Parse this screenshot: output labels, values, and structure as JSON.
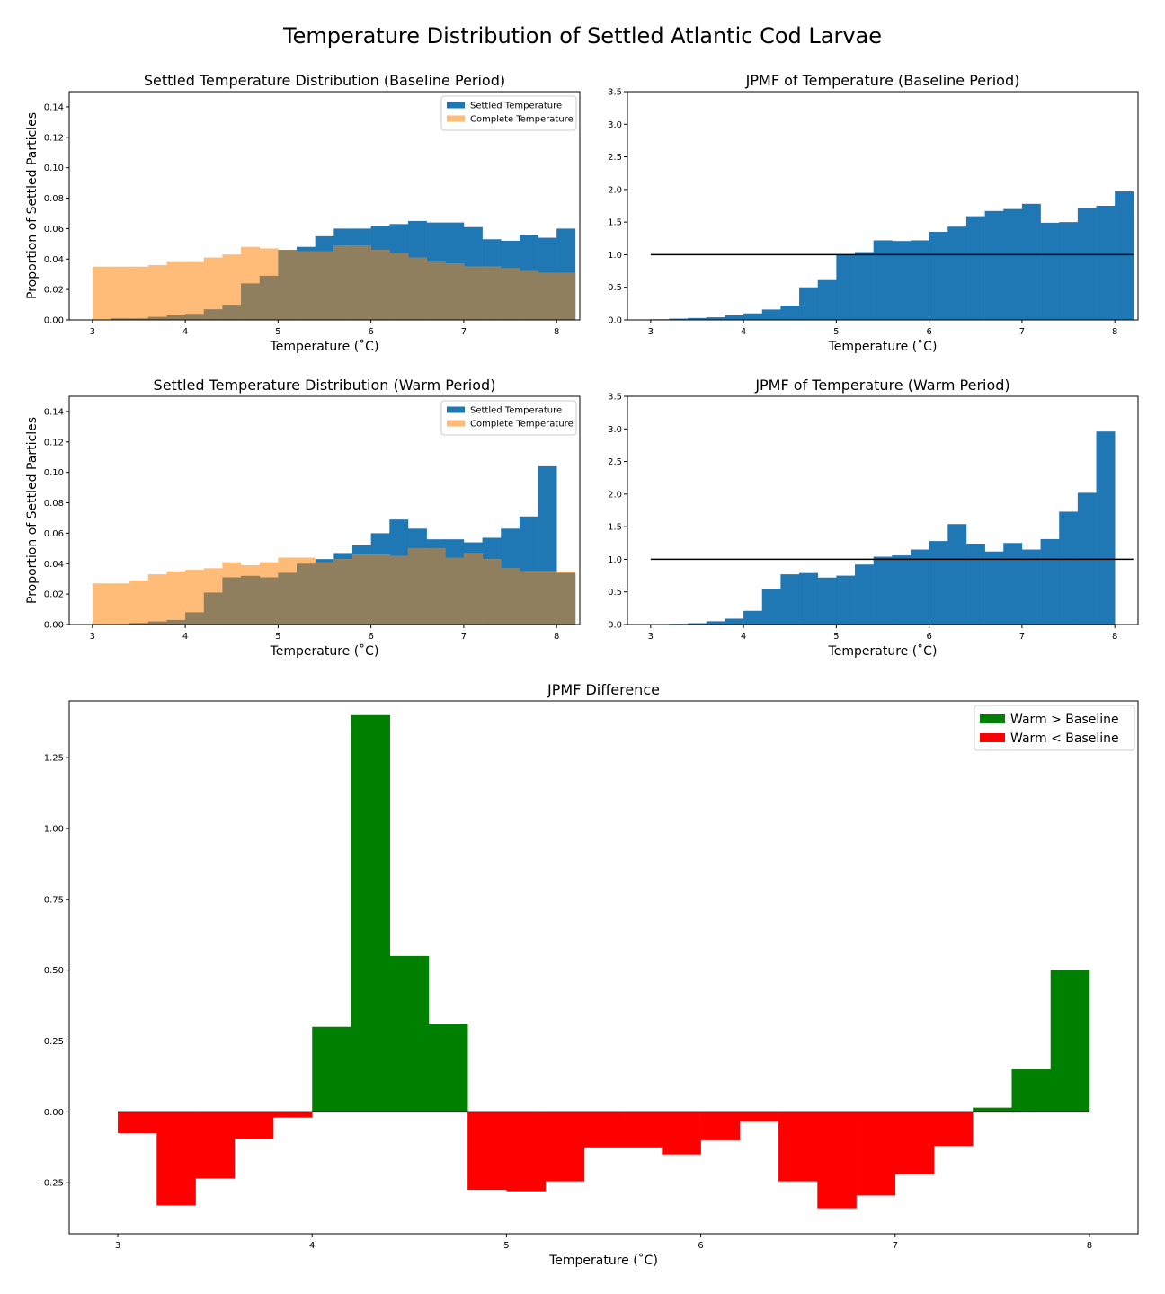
{
  "figure": {
    "title": "Temperature Distribution of Settled Atlantic Cod Larvae"
  },
  "colors": {
    "settled": "#1f77b4",
    "complete": "#ffbb78",
    "overlap": "#8f7f5e",
    "positive": "#008000",
    "negative": "#ff0000",
    "axis": "#000000"
  },
  "chart_data": [
    {
      "id": "hist-baseline",
      "type": "bar",
      "title": "Settled Temperature Distribution (Baseline Period)",
      "xlabel": "Temperature (˚C)",
      "ylabel": "Proportion of Settled Particles",
      "xlim": [
        2.75,
        8.25
      ],
      "ylim": [
        0,
        0.15
      ],
      "xticks": [
        "3",
        "4",
        "5",
        "6",
        "7",
        "8"
      ],
      "yticks": [
        "0.00",
        "0.02",
        "0.04",
        "0.06",
        "0.08",
        "0.10",
        "0.12",
        "0.14"
      ],
      "bin_start": 3.0,
      "bin_width": 0.2,
      "legend": {
        "position": "upper right",
        "entries": [
          "Settled Temperature",
          "Complete Temperature"
        ]
      },
      "series": [
        {
          "name": "Settled Temperature",
          "values": [
            0.0,
            0.001,
            0.001,
            0.002,
            0.003,
            0.004,
            0.007,
            0.01,
            0.024,
            0.029,
            0.046,
            0.048,
            0.055,
            0.06,
            0.06,
            0.062,
            0.063,
            0.065,
            0.064,
            0.064,
            0.061,
            0.053,
            0.052,
            0.056,
            0.054,
            0.06
          ]
        },
        {
          "name": "Complete Temperature",
          "values": [
            0.035,
            0.035,
            0.035,
            0.036,
            0.038,
            0.038,
            0.041,
            0.043,
            0.048,
            0.047,
            0.046,
            0.045,
            0.045,
            0.049,
            0.049,
            0.046,
            0.044,
            0.041,
            0.038,
            0.037,
            0.035,
            0.035,
            0.034,
            0.032,
            0.031,
            0.031
          ]
        }
      ]
    },
    {
      "id": "jpmf-baseline",
      "type": "bar",
      "title": "JPMF of Temperature (Baseline Period)",
      "xlabel": "Temperature (˚C)",
      "xlim": [
        2.75,
        8.25
      ],
      "ylim": [
        0,
        3.5
      ],
      "xticks": [
        "3",
        "4",
        "5",
        "6",
        "7",
        "8"
      ],
      "yticks": [
        "0.0",
        "0.5",
        "1.0",
        "1.5",
        "2.0",
        "2.5",
        "3.0",
        "3.5"
      ],
      "bin_start": 3.0,
      "bin_width": 0.2,
      "reference_line": 1.0,
      "values": [
        0.01,
        0.02,
        0.03,
        0.04,
        0.07,
        0.1,
        0.16,
        0.22,
        0.5,
        0.61,
        1.0,
        1.04,
        1.22,
        1.21,
        1.22,
        1.35,
        1.43,
        1.59,
        1.67,
        1.7,
        1.78,
        1.49,
        1.5,
        1.71,
        1.75,
        1.97
      ]
    },
    {
      "id": "hist-warm",
      "type": "bar",
      "title": "Settled Temperature Distribution (Warm Period)",
      "xlabel": "Temperature (˚C)",
      "ylabel": "Proportion of Settled Particles",
      "xlim": [
        2.75,
        8.25
      ],
      "ylim": [
        0,
        0.15
      ],
      "xticks": [
        "3",
        "4",
        "5",
        "6",
        "7",
        "8"
      ],
      "yticks": [
        "0.00",
        "0.02",
        "0.04",
        "0.06",
        "0.08",
        "0.10",
        "0.12",
        "0.14"
      ],
      "bin_start": 3.0,
      "bin_width": 0.2,
      "legend": {
        "position": "upper right",
        "entries": [
          "Settled Temperature",
          "Complete Temperature"
        ]
      },
      "series": [
        {
          "name": "Settled Temperature",
          "values": [
            0.0,
            0.0,
            0.001,
            0.002,
            0.003,
            0.008,
            0.021,
            0.031,
            0.032,
            0.031,
            0.034,
            0.04,
            0.043,
            0.047,
            0.052,
            0.06,
            0.069,
            0.063,
            0.056,
            0.056,
            0.054,
            0.057,
            0.063,
            0.071,
            0.104,
            0.034
          ]
        },
        {
          "name": "Complete Temperature",
          "values": [
            0.027,
            0.027,
            0.029,
            0.033,
            0.035,
            0.036,
            0.037,
            0.041,
            0.039,
            0.041,
            0.044,
            0.044,
            0.041,
            0.043,
            0.046,
            0.046,
            0.045,
            0.05,
            0.05,
            0.044,
            0.047,
            0.043,
            0.037,
            0.035,
            0.035,
            0.035
          ]
        }
      ]
    },
    {
      "id": "jpmf-warm",
      "type": "bar",
      "title": "JPMF of Temperature (Warm Period)",
      "xlabel": "Temperature (˚C)",
      "xlim": [
        2.75,
        8.25
      ],
      "ylim": [
        0,
        3.5
      ],
      "xticks": [
        "3",
        "4",
        "5",
        "6",
        "7",
        "8"
      ],
      "yticks": [
        "0.0",
        "0.5",
        "1.0",
        "1.5",
        "2.0",
        "2.5",
        "3.0",
        "3.5"
      ],
      "bin_start": 3.0,
      "bin_width": 0.2,
      "reference_line": 1.0,
      "values": [
        0.0,
        0.01,
        0.02,
        0.05,
        0.09,
        0.21,
        0.55,
        0.77,
        0.79,
        0.72,
        0.75,
        0.92,
        1.04,
        1.06,
        1.15,
        1.28,
        1.54,
        1.24,
        1.12,
        1.25,
        1.15,
        1.31,
        1.73,
        2.02,
        2.96,
        0.0
      ]
    },
    {
      "id": "jpmf-difference",
      "type": "bar",
      "title": "JPMF Difference",
      "xlabel": "Temperature (˚C)",
      "xlim": [
        2.75,
        8.25
      ],
      "ylim": [
        -0.43,
        1.45
      ],
      "xticks": [
        "3",
        "4",
        "5",
        "6",
        "7",
        "8"
      ],
      "yticks": [
        "−0.25",
        "0.00",
        "0.25",
        "0.50",
        "0.75",
        "1.00",
        "1.25"
      ],
      "ytick_values": [
        -0.25,
        0,
        0.25,
        0.5,
        0.75,
        1.0,
        1.25
      ],
      "bin_start": 3.0,
      "bin_width": 0.2,
      "reference_line": 0.0,
      "legend": {
        "position": "upper right",
        "entries": [
          "Warm > Baseline",
          "Warm < Baseline"
        ]
      },
      "values": [
        -0.075,
        -0.33,
        -0.235,
        -0.095,
        -0.02,
        0.3,
        1.4,
        0.55,
        0.31,
        -0.275,
        -0.28,
        -0.245,
        -0.125,
        -0.125,
        -0.15,
        -0.1,
        -0.035,
        -0.245,
        -0.34,
        -0.295,
        -0.22,
        -0.12,
        0.015,
        0.15,
        0.5
      ]
    }
  ]
}
